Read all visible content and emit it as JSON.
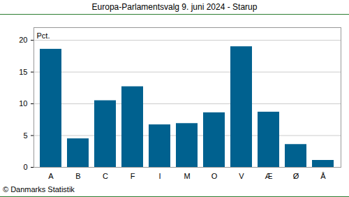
{
  "chart_data": {
    "type": "bar",
    "title": "Europa-Parlamentsvalg 9. juni 2024 - Starup",
    "y_label": "Pct.",
    "caption": "© Danmarks Statistik",
    "categories": [
      "A",
      "B",
      "C",
      "F",
      "I",
      "M",
      "O",
      "V",
      "Æ",
      "Ø",
      "Å"
    ],
    "values": [
      18.6,
      4.5,
      10.5,
      12.7,
      6.7,
      6.9,
      8.6,
      19.0,
      8.7,
      3.6,
      1.1
    ],
    "color": "#00618f",
    "ylim": [
      0,
      22
    ],
    "yticks": [
      0,
      5,
      10,
      15,
      20
    ],
    "grid": true
  }
}
